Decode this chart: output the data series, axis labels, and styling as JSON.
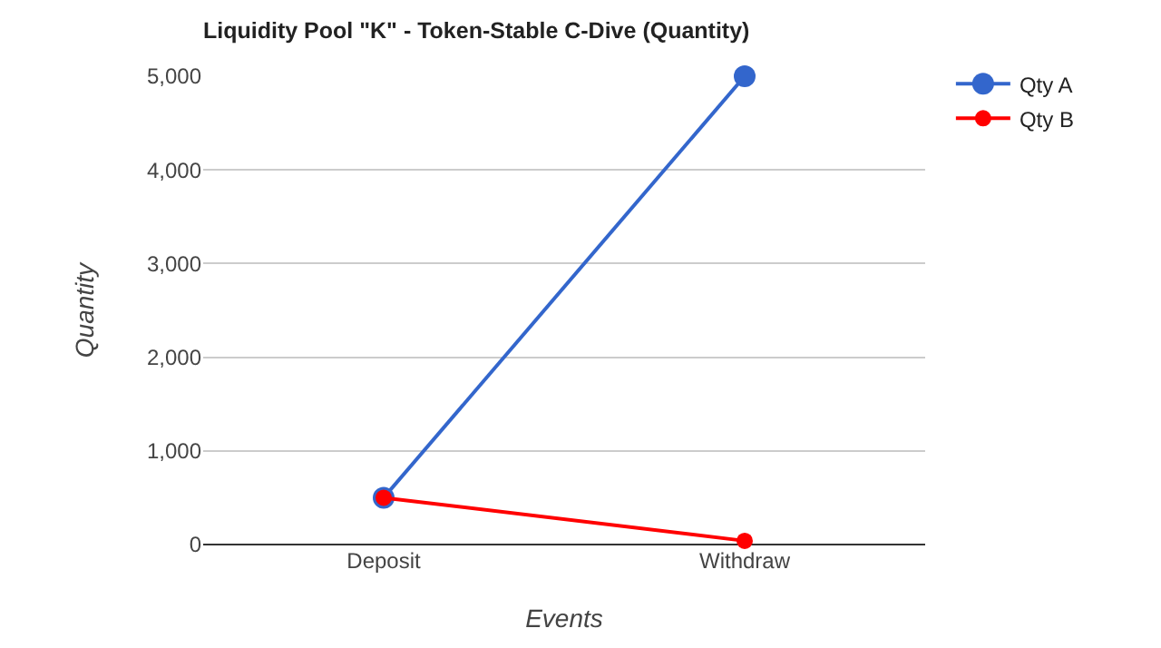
{
  "chart_data": {
    "type": "line",
    "title": "Liquidity Pool \"K\" - Token-Stable C-Dive (Quantity)",
    "xlabel": "Events",
    "ylabel": "Quantity",
    "categories": [
      "Deposit",
      "Withdraw"
    ],
    "series": [
      {
        "name": "Qty A",
        "color": "#3366cc",
        "values": [
          500,
          5000
        ]
      },
      {
        "name": "Qty B",
        "color": "#ff0000",
        "values": [
          500,
          40
        ]
      }
    ],
    "ylim": [
      0,
      5000
    ],
    "yticks": [
      {
        "value": 0,
        "label": "0"
      },
      {
        "value": 1000,
        "label": "1,000"
      },
      {
        "value": 2000,
        "label": "2,000"
      },
      {
        "value": 3000,
        "label": "3,000"
      },
      {
        "value": 4000,
        "label": "4,000"
      },
      {
        "value": 5000,
        "label": "5,000"
      }
    ],
    "grid": "y",
    "legend": "top right",
    "marker": "circle",
    "line_style": "solid"
  }
}
